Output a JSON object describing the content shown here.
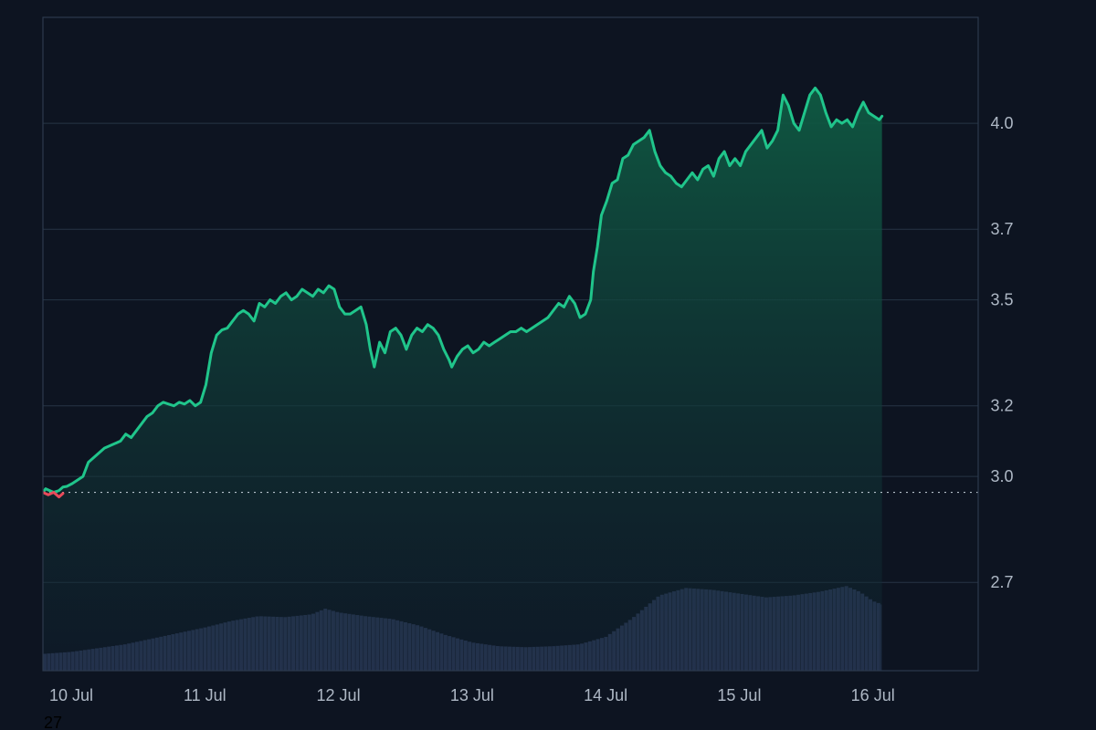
{
  "chart_data": {
    "type": "area",
    "x_axis": {
      "ticks": [
        "10 Jul",
        "11 Jul",
        "12 Jul",
        "13 Jul",
        "14 Jul",
        "15 Jul",
        "16 Jul"
      ]
    },
    "y_axis": {
      "position": "right",
      "ticks": [
        "2.7",
        "3.0",
        "3.2",
        "3.5",
        "3.7",
        "4.0"
      ],
      "range": [
        2.45,
        4.3
      ]
    },
    "baseline": 2.955,
    "grid": true,
    "legend": false,
    "series": [
      {
        "values": [
          [
            0.0,
            2.955
          ],
          [
            0.02,
            2.965
          ],
          [
            0.05,
            2.96
          ],
          [
            0.08,
            2.955
          ],
          [
            0.12,
            2.96
          ],
          [
            0.15,
            2.97
          ],
          [
            0.18,
            2.972
          ],
          [
            0.22,
            2.98
          ],
          [
            0.26,
            2.99
          ],
          [
            0.3,
            3.0
          ],
          [
            0.34,
            3.04
          ],
          [
            0.4,
            3.06
          ],
          [
            0.46,
            3.08
          ],
          [
            0.52,
            3.09
          ],
          [
            0.58,
            3.1
          ],
          [
            0.62,
            3.12
          ],
          [
            0.66,
            3.11
          ],
          [
            0.7,
            3.13
          ],
          [
            0.74,
            3.15
          ],
          [
            0.78,
            3.17
          ],
          [
            0.82,
            3.18
          ],
          [
            0.86,
            3.2
          ],
          [
            0.9,
            3.21
          ],
          [
            0.94,
            3.205
          ],
          [
            0.98,
            3.2
          ],
          [
            1.02,
            3.21
          ],
          [
            1.06,
            3.205
          ],
          [
            1.1,
            3.215
          ],
          [
            1.14,
            3.2
          ],
          [
            1.18,
            3.21
          ],
          [
            1.22,
            3.26
          ],
          [
            1.26,
            3.35
          ],
          [
            1.3,
            3.4
          ],
          [
            1.34,
            3.415
          ],
          [
            1.38,
            3.42
          ],
          [
            1.42,
            3.44
          ],
          [
            1.46,
            3.46
          ],
          [
            1.5,
            3.47
          ],
          [
            1.54,
            3.46
          ],
          [
            1.58,
            3.44
          ],
          [
            1.62,
            3.49
          ],
          [
            1.66,
            3.48
          ],
          [
            1.7,
            3.5
          ],
          [
            1.74,
            3.49
          ],
          [
            1.78,
            3.51
          ],
          [
            1.82,
            3.52
          ],
          [
            1.86,
            3.5
          ],
          [
            1.9,
            3.51
          ],
          [
            1.94,
            3.53
          ],
          [
            1.98,
            3.52
          ],
          [
            2.02,
            3.51
          ],
          [
            2.06,
            3.53
          ],
          [
            2.1,
            3.52
          ],
          [
            2.14,
            3.54
          ],
          [
            2.18,
            3.53
          ],
          [
            2.22,
            3.48
          ],
          [
            2.26,
            3.46
          ],
          [
            2.3,
            3.46
          ],
          [
            2.34,
            3.47
          ],
          [
            2.38,
            3.48
          ],
          [
            2.42,
            3.43
          ],
          [
            2.45,
            3.36
          ],
          [
            2.48,
            3.31
          ],
          [
            2.52,
            3.38
          ],
          [
            2.56,
            3.35
          ],
          [
            2.6,
            3.41
          ],
          [
            2.64,
            3.42
          ],
          [
            2.68,
            3.4
          ],
          [
            2.72,
            3.36
          ],
          [
            2.76,
            3.4
          ],
          [
            2.8,
            3.42
          ],
          [
            2.84,
            3.41
          ],
          [
            2.88,
            3.43
          ],
          [
            2.92,
            3.42
          ],
          [
            2.96,
            3.4
          ],
          [
            3.0,
            3.36
          ],
          [
            3.04,
            3.33
          ],
          [
            3.06,
            3.31
          ],
          [
            3.1,
            3.34
          ],
          [
            3.14,
            3.36
          ],
          [
            3.18,
            3.37
          ],
          [
            3.22,
            3.35
          ],
          [
            3.26,
            3.36
          ],
          [
            3.3,
            3.38
          ],
          [
            3.34,
            3.37
          ],
          [
            3.38,
            3.38
          ],
          [
            3.42,
            3.39
          ],
          [
            3.46,
            3.4
          ],
          [
            3.5,
            3.41
          ],
          [
            3.54,
            3.41
          ],
          [
            3.58,
            3.42
          ],
          [
            3.62,
            3.41
          ],
          [
            3.66,
            3.42
          ],
          [
            3.7,
            3.43
          ],
          [
            3.74,
            3.44
          ],
          [
            3.78,
            3.45
          ],
          [
            3.82,
            3.47
          ],
          [
            3.86,
            3.49
          ],
          [
            3.9,
            3.48
          ],
          [
            3.94,
            3.51
          ],
          [
            3.98,
            3.49
          ],
          [
            4.02,
            3.45
          ],
          [
            4.06,
            3.46
          ],
          [
            4.1,
            3.5
          ],
          [
            4.12,
            3.58
          ],
          [
            4.15,
            3.65
          ],
          [
            4.18,
            3.74
          ],
          [
            4.22,
            3.78
          ],
          [
            4.26,
            3.83
          ],
          [
            4.3,
            3.84
          ],
          [
            4.34,
            3.9
          ],
          [
            4.38,
            3.91
          ],
          [
            4.42,
            3.94
          ],
          [
            4.46,
            3.95
          ],
          [
            4.5,
            3.96
          ],
          [
            4.54,
            3.98
          ],
          [
            4.58,
            3.92
          ],
          [
            4.62,
            3.88
          ],
          [
            4.66,
            3.86
          ],
          [
            4.7,
            3.85
          ],
          [
            4.74,
            3.83
          ],
          [
            4.78,
            3.82
          ],
          [
            4.82,
            3.84
          ],
          [
            4.86,
            3.86
          ],
          [
            4.9,
            3.84
          ],
          [
            4.94,
            3.87
          ],
          [
            4.98,
            3.88
          ],
          [
            5.02,
            3.85
          ],
          [
            5.06,
            3.9
          ],
          [
            5.1,
            3.92
          ],
          [
            5.14,
            3.88
          ],
          [
            5.18,
            3.9
          ],
          [
            5.22,
            3.88
          ],
          [
            5.26,
            3.92
          ],
          [
            5.3,
            3.94
          ],
          [
            5.34,
            3.96
          ],
          [
            5.38,
            3.98
          ],
          [
            5.42,
            3.93
          ],
          [
            5.46,
            3.95
          ],
          [
            5.5,
            3.98
          ],
          [
            5.54,
            4.08
          ],
          [
            5.58,
            4.05
          ],
          [
            5.62,
            4.0
          ],
          [
            5.66,
            3.98
          ],
          [
            5.7,
            4.03
          ],
          [
            5.74,
            4.08
          ],
          [
            5.78,
            4.1
          ],
          [
            5.82,
            4.08
          ],
          [
            5.86,
            4.03
          ],
          [
            5.9,
            3.99
          ],
          [
            5.94,
            4.01
          ],
          [
            5.98,
            4.0
          ],
          [
            6.02,
            4.01
          ],
          [
            6.06,
            3.99
          ],
          [
            6.1,
            4.03
          ],
          [
            6.14,
            4.06
          ],
          [
            6.18,
            4.03
          ],
          [
            6.22,
            4.02
          ],
          [
            6.26,
            4.01
          ],
          [
            6.28,
            4.02
          ]
        ]
      }
    ],
    "volume": {
      "values": [
        [
          0.0,
          0.18
        ],
        [
          0.2,
          0.2
        ],
        [
          0.4,
          0.24
        ],
        [
          0.6,
          0.28
        ],
        [
          0.8,
          0.34
        ],
        [
          1.0,
          0.4
        ],
        [
          1.2,
          0.46
        ],
        [
          1.4,
          0.53
        ],
        [
          1.6,
          0.58
        ],
        [
          1.8,
          0.57
        ],
        [
          2.0,
          0.6
        ],
        [
          2.1,
          0.66
        ],
        [
          2.2,
          0.62
        ],
        [
          2.4,
          0.58
        ],
        [
          2.6,
          0.55
        ],
        [
          2.8,
          0.48
        ],
        [
          3.0,
          0.38
        ],
        [
          3.2,
          0.3
        ],
        [
          3.4,
          0.26
        ],
        [
          3.6,
          0.25
        ],
        [
          3.8,
          0.26
        ],
        [
          4.0,
          0.28
        ],
        [
          4.2,
          0.36
        ],
        [
          4.4,
          0.56
        ],
        [
          4.6,
          0.8
        ],
        [
          4.8,
          0.88
        ],
        [
          5.0,
          0.86
        ],
        [
          5.2,
          0.82
        ],
        [
          5.4,
          0.78
        ],
        [
          5.6,
          0.8
        ],
        [
          5.8,
          0.84
        ],
        [
          6.0,
          0.9
        ],
        [
          6.1,
          0.84
        ],
        [
          6.2,
          0.74
        ],
        [
          6.28,
          0.7
        ]
      ]
    },
    "stray_label": "27",
    "colors": {
      "background": "#0d1421",
      "frame": "#2c3a4d",
      "grid": "#263445",
      "axis_text": "#aeb8c5",
      "up_line": "#20c58b",
      "down_line": "#ea4a5a",
      "fill_top": "#0f5b43",
      "fill_bottom": "#112331",
      "volume": "#2f3b5e",
      "baseline": "#c9d3dd"
    }
  }
}
